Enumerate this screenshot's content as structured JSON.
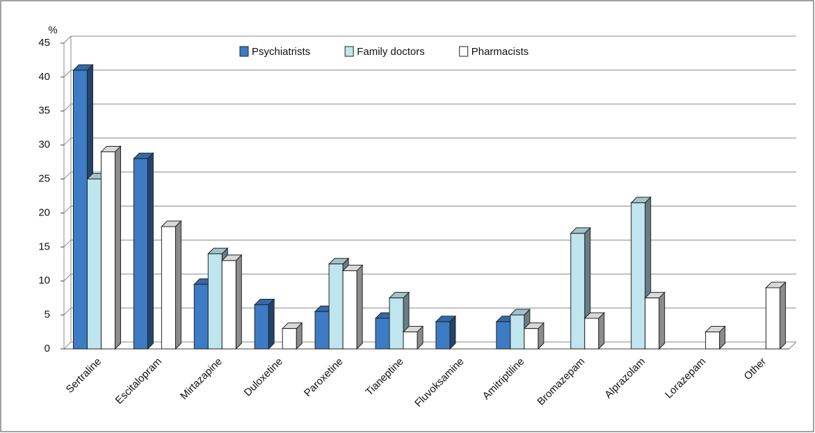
{
  "chart_data": {
    "type": "bar3d",
    "y_label": "%",
    "categories": [
      "Sertraline",
      "Escitalopram",
      "Mirtazapine",
      "Duloxetine",
      "Paroxetine",
      "Tianeptine",
      "Fluvoksamine",
      "Amitriptiline",
      "Bromazepam",
      "Alprazolam",
      "Lorazepam",
      "Other"
    ],
    "series": [
      {
        "name": "Psychiatrists",
        "color": "#3d7bc4",
        "values": [
          41,
          28,
          9.5,
          6.5,
          5.5,
          4.5,
          4,
          4,
          null,
          null,
          null,
          null
        ]
      },
      {
        "name": "Family doctors",
        "color": "#bfe5ee",
        "values": [
          25,
          null,
          14,
          null,
          12.5,
          7.5,
          null,
          5,
          17,
          21.5,
          null,
          null
        ]
      },
      {
        "name": "Pharmacists",
        "color": "#ffffff",
        "values": [
          29,
          18,
          13,
          3,
          11.5,
          2.5,
          null,
          3,
          4.5,
          7.5,
          2.5,
          9
        ]
      }
    ],
    "ylim": [
      0,
      45
    ],
    "yticks": [
      0,
      5,
      10,
      15,
      20,
      25,
      30,
      35,
      40,
      45
    ],
    "grid": true
  }
}
